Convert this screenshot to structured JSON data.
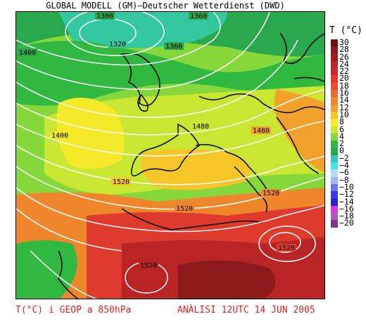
{
  "header": {
    "title": "GLOBAL MODELL (GM)—Deutscher Wetterdienst (DWD)"
  },
  "legend": {
    "title": "T (°C)",
    "items": [
      {
        "label": "30",
        "color": "#6b1313"
      },
      {
        "label": "28",
        "color": "#8c1a1a"
      },
      {
        "label": "26",
        "color": "#a01e1e"
      },
      {
        "label": "24",
        "color": "#b92424"
      },
      {
        "label": "22",
        "color": "#cc2a2a"
      },
      {
        "label": "20",
        "color": "#de3a2e"
      },
      {
        "label": "18",
        "color": "#e84f30"
      },
      {
        "label": "16",
        "color": "#ee6a30"
      },
      {
        "label": "14",
        "color": "#f0862c"
      },
      {
        "label": "12",
        "color": "#f2a22a"
      },
      {
        "label": "10",
        "color": "#f6c628"
      },
      {
        "label": "8",
        "color": "#f4ea2a"
      },
      {
        "label": "6",
        "color": "#c8e632"
      },
      {
        "label": "4",
        "color": "#86d83a"
      },
      {
        "label": "2",
        "color": "#30b840"
      },
      {
        "label": "0",
        "color": "#2aa84e"
      },
      {
        "label": "−2",
        "color": "#34c8c0"
      },
      {
        "label": "−4",
        "color": "#40e6e8"
      },
      {
        "label": "−6",
        "color": "#b4dcf8"
      },
      {
        "label": "−8",
        "color": "#a2b4f6"
      },
      {
        "label": "−10",
        "color": "#6878ee"
      },
      {
        "label": "−12",
        "color": "#3a3ae0"
      },
      {
        "label": "−14",
        "color": "#2a22c8"
      },
      {
        "label": "−16",
        "color": "#d838e2"
      },
      {
        "label": "−18",
        "color": "#b05abc"
      },
      {
        "label": "−20",
        "color": "#7c3a8a"
      }
    ]
  },
  "isolines": {
    "labels": [
      "1300",
      "1360",
      "1320",
      "1360",
      "1400",
      "1400",
      "1480",
      "1480",
      "1520",
      "1520",
      "1520",
      "1520",
      "1520"
    ]
  },
  "footer": {
    "left": "T(°C) i GEOP a 850hPa",
    "right": "ANÀLISI 12UTC 14 JUN 2005"
  },
  "colors": {
    "footer_text": "#e02020",
    "isolines": "#ffffff",
    "coast": "#000000"
  }
}
